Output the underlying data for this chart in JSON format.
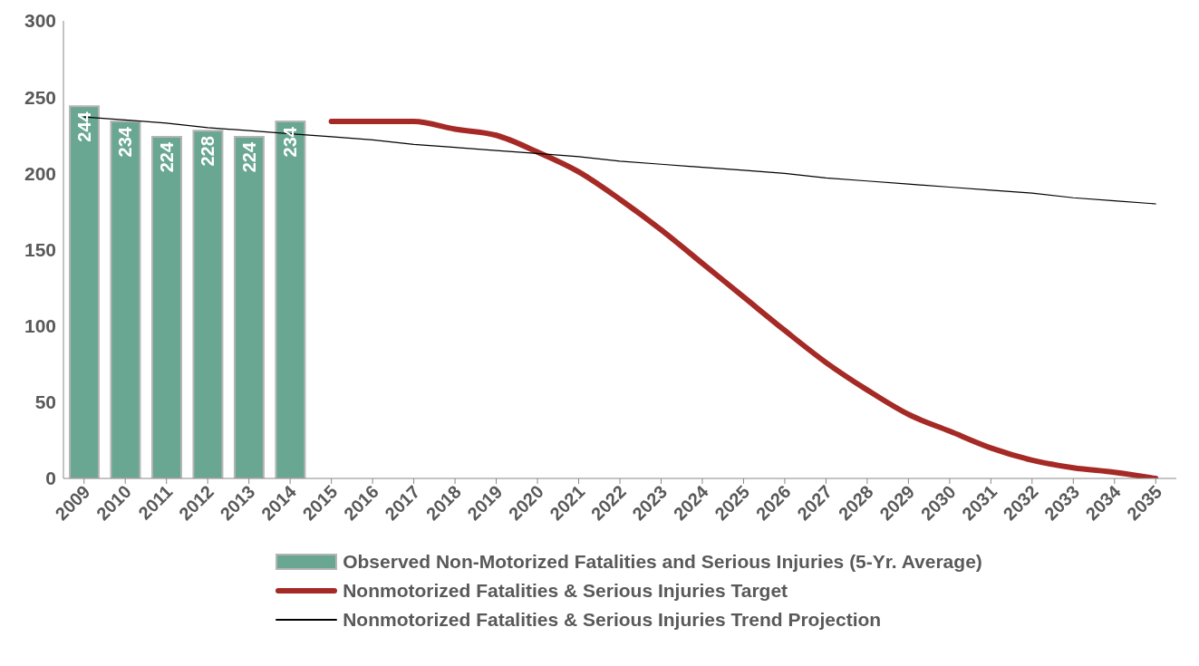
{
  "chart_data": {
    "type": "bar",
    "categories": [
      "2009",
      "2010",
      "2011",
      "2012",
      "2013",
      "2014",
      "2015",
      "2016",
      "2017",
      "2018",
      "2019",
      "2020",
      "2021",
      "2022",
      "2023",
      "2024",
      "2025",
      "2026",
      "2027",
      "2028",
      "2029",
      "2030",
      "2031",
      "2032",
      "2033",
      "2034",
      "2035"
    ],
    "series": [
      {
        "name": "Observed Non-Motorized Fatalities and Serious Injuries (5-Yr. Average)",
        "color": "#69a792",
        "data_labels": true,
        "values": [
          244,
          234,
          224,
          228,
          224,
          234,
          null,
          null,
          null,
          null,
          null,
          null,
          null,
          null,
          null,
          null,
          null,
          null,
          null,
          null,
          null,
          null,
          null,
          null,
          null,
          null,
          null
        ]
      },
      {
        "name": "Nonmotorized Fatalities & Serious Injuries Target",
        "type": "line",
        "color": "#a52a26",
        "values": [
          null,
          null,
          null,
          null,
          null,
          null,
          234,
          234,
          234,
          229,
          225,
          214,
          201,
          183,
          163,
          141,
          119,
          97,
          76,
          58,
          42,
          31,
          20,
          12,
          7,
          4,
          0
        ]
      },
      {
        "name": "Nonmotorized Fatalities & Serious Injuries Trend Projection",
        "type": "line",
        "color": "#000000",
        "values": [
          237,
          235,
          233,
          230,
          228,
          226,
          224,
          222,
          219,
          217,
          215,
          213,
          211,
          208,
          206,
          204,
          202,
          200,
          197,
          195,
          193,
          191,
          189,
          187,
          184,
          182,
          180
        ]
      }
    ],
    "ylim": [
      0,
      300
    ],
    "yticks": [
      0,
      50,
      100,
      150,
      200,
      250,
      300
    ],
    "grid": false,
    "legend": "bottom",
    "marker": "none",
    "line_style": "solid"
  }
}
